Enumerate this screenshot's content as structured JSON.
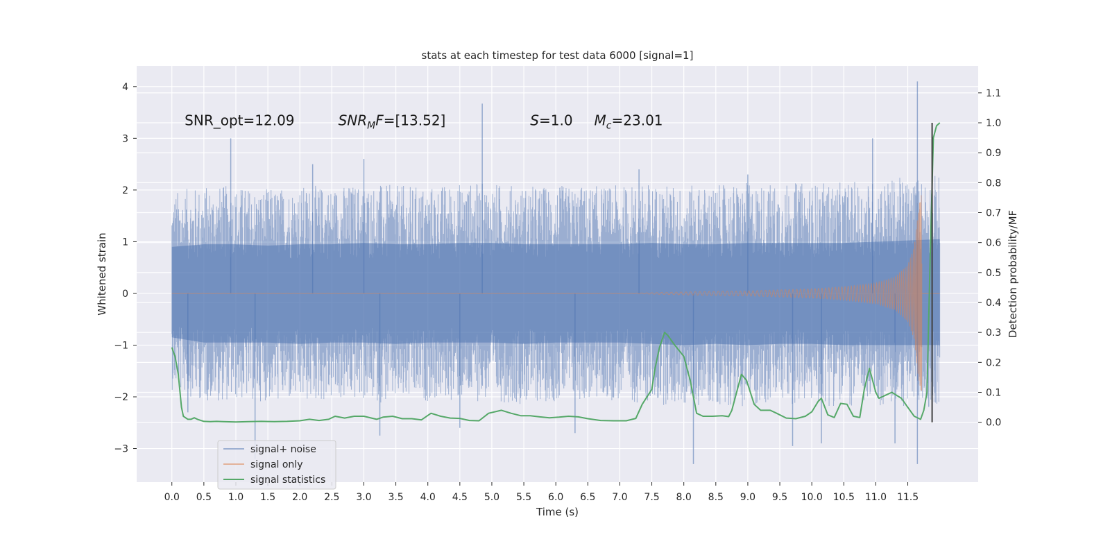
{
  "chart_data": {
    "type": "line",
    "title": "stats at each timestep for test data 6000 [signal=1]",
    "xlabel": "Time (s)",
    "ylabel": "Whitened strain",
    "y2label": "Detection probability/MF",
    "xlim": [
      -0.55,
      12.6
    ],
    "ylim": [
      -3.65,
      4.4
    ],
    "y2lim": [
      -0.2,
      1.19
    ],
    "xticks": [
      0.0,
      0.5,
      1.0,
      1.5,
      2.0,
      2.5,
      3.0,
      3.5,
      4.0,
      4.5,
      5.0,
      5.5,
      6.0,
      6.5,
      7.0,
      7.5,
      8.0,
      8.5,
      9.0,
      9.5,
      10.0,
      10.5,
      11.0,
      11.5
    ],
    "xtick_labels": [
      "0.0",
      "0.5",
      "1.0",
      "1.5",
      "2.0",
      "2.5",
      "3.0",
      "3.5",
      "4.0",
      "4.5",
      "5.0",
      "5.5",
      "6.0",
      "6.5",
      "7.0",
      "7.5",
      "8.0",
      "8.5",
      "9.0",
      "9.5",
      "10.0",
      "10.5",
      "11.0",
      "11.5"
    ],
    "yticks": [
      -3,
      -2,
      -1,
      0,
      1,
      2,
      3,
      4
    ],
    "ytick_labels": [
      "−3",
      "−2",
      "−1",
      "0",
      "1",
      "2",
      "3",
      "4"
    ],
    "y2ticks": [
      0.0,
      0.1,
      0.2,
      0.3,
      0.4,
      0.5,
      0.6,
      0.7,
      0.8,
      0.9,
      1.0,
      1.1
    ],
    "y2tick_labels": [
      "0.0",
      "0.1",
      "0.2",
      "0.3",
      "0.4",
      "0.5",
      "0.6",
      "0.7",
      "0.8",
      "0.9",
      "1.0",
      "1.1"
    ],
    "grid": true,
    "legend_placement": "lower-left",
    "annotations": [
      {
        "text": "SNR_opt=12.09",
        "x": 0.2,
        "y": 3.35,
        "italic_prefix": ""
      },
      {
        "text": "SNR",
        "sub": "M",
        "tail": "F=[13.52]",
        "x": 2.6,
        "y": 3.35
      },
      {
        "text": "S",
        "tail": "=1.0",
        "x": 5.6,
        "y": 3.35
      },
      {
        "text": "M",
        "sub": "c",
        "tail": "=23.01",
        "x": 6.6,
        "y": 3.35
      }
    ],
    "series": [
      {
        "name": "signal+ noise",
        "color": "#4c72b0",
        "opacity": 0.5,
        "axis": "left",
        "x_range": [
          0.0,
          12.0
        ],
        "envelope_upper": [
          1.8,
          1.9,
          1.9,
          1.85,
          1.9,
          1.9,
          1.95,
          1.9,
          1.9,
          1.95,
          1.95,
          1.9,
          1.9,
          1.9,
          1.9,
          1.95,
          1.9,
          1.9,
          1.95,
          1.95,
          1.95,
          1.95,
          2.0,
          2.05,
          2.1
        ],
        "envelope_lower": [
          -1.7,
          -1.9,
          -1.9,
          -1.9,
          -1.95,
          -1.9,
          -1.9,
          -1.95,
          -1.9,
          -1.9,
          -1.9,
          -1.95,
          -1.9,
          -1.9,
          -1.9,
          -1.95,
          -2.0,
          -1.95,
          -2.0,
          -1.95,
          -1.95,
          -2.0,
          -2.0,
          -2.0,
          -2.0
        ],
        "spikes": [
          {
            "x": 0.92,
            "y": 3.0
          },
          {
            "x": 4.85,
            "y": 3.67
          },
          {
            "x": 11.65,
            "y": 4.1
          },
          {
            "x": 2.2,
            "y": 2.5
          },
          {
            "x": 3.0,
            "y": 2.6
          },
          {
            "x": 7.3,
            "y": 2.4
          },
          {
            "x": 9.0,
            "y": 2.3
          },
          {
            "x": 10.95,
            "y": 3.0
          },
          {
            "x": 1.3,
            "y": -3.2
          },
          {
            "x": 8.15,
            "y": -3.3
          },
          {
            "x": 10.15,
            "y": -2.9
          },
          {
            "x": 11.65,
            "y": -3.3
          },
          {
            "x": 3.25,
            "y": -2.75
          },
          {
            "x": 6.3,
            "y": -2.7
          },
          {
            "x": 9.7,
            "y": -2.95
          },
          {
            "x": 11.3,
            "y": -2.9
          },
          {
            "x": 0.25,
            "y": -2.3
          },
          {
            "x": 4.5,
            "y": -2.6
          }
        ]
      },
      {
        "name": "signal only",
        "color": "#dd8452",
        "opacity": 0.55,
        "axis": "left",
        "envelope": [
          [
            7.0,
            0.0
          ],
          [
            8.0,
            0.03
          ],
          [
            9.0,
            0.05
          ],
          [
            10.0,
            0.09
          ],
          [
            10.5,
            0.13
          ],
          [
            11.0,
            0.2
          ],
          [
            11.3,
            0.32
          ],
          [
            11.5,
            0.55
          ],
          [
            11.6,
            0.9
          ],
          [
            11.65,
            1.5
          ],
          [
            11.7,
            1.9
          ]
        ],
        "end_x": 11.72
      },
      {
        "name": "signal statistics",
        "color": "#55a868",
        "axis": "right",
        "points": [
          [
            0.0,
            0.25
          ],
          [
            0.05,
            0.22
          ],
          [
            0.1,
            0.16
          ],
          [
            0.15,
            0.05
          ],
          [
            0.18,
            0.02
          ],
          [
            0.25,
            0.01
          ],
          [
            0.3,
            0.01
          ],
          [
            0.35,
            0.015
          ],
          [
            0.4,
            0.01
          ],
          [
            0.5,
            0.003
          ],
          [
            0.6,
            0.002
          ],
          [
            0.7,
            0.003
          ],
          [
            0.8,
            0.002
          ],
          [
            1.0,
            0.001
          ],
          [
            1.2,
            0.002
          ],
          [
            1.4,
            0.003
          ],
          [
            1.6,
            0.002
          ],
          [
            1.8,
            0.003
          ],
          [
            2.0,
            0.005
          ],
          [
            2.15,
            0.01
          ],
          [
            2.3,
            0.006
          ],
          [
            2.45,
            0.01
          ],
          [
            2.55,
            0.02
          ],
          [
            2.7,
            0.014
          ],
          [
            2.85,
            0.02
          ],
          [
            3.0,
            0.02
          ],
          [
            3.2,
            0.01
          ],
          [
            3.3,
            0.017
          ],
          [
            3.45,
            0.02
          ],
          [
            3.6,
            0.012
          ],
          [
            3.75,
            0.012
          ],
          [
            3.9,
            0.008
          ],
          [
            4.05,
            0.03
          ],
          [
            4.2,
            0.02
          ],
          [
            4.35,
            0.014
          ],
          [
            4.5,
            0.013
          ],
          [
            4.65,
            0.006
          ],
          [
            4.8,
            0.005
          ],
          [
            4.95,
            0.03
          ],
          [
            5.15,
            0.04
          ],
          [
            5.3,
            0.03
          ],
          [
            5.45,
            0.022
          ],
          [
            5.6,
            0.022
          ],
          [
            5.75,
            0.018
          ],
          [
            5.9,
            0.015
          ],
          [
            6.05,
            0.017
          ],
          [
            6.2,
            0.02
          ],
          [
            6.35,
            0.018
          ],
          [
            6.5,
            0.012
          ],
          [
            6.7,
            0.006
          ],
          [
            6.9,
            0.005
          ],
          [
            7.1,
            0.005
          ],
          [
            7.25,
            0.013
          ],
          [
            7.35,
            0.06
          ],
          [
            7.5,
            0.11
          ],
          [
            7.55,
            0.18
          ],
          [
            7.62,
            0.25
          ],
          [
            7.7,
            0.3
          ],
          [
            7.75,
            0.29
          ],
          [
            7.85,
            0.26
          ],
          [
            8.0,
            0.22
          ],
          [
            8.1,
            0.14
          ],
          [
            8.2,
            0.03
          ],
          [
            8.3,
            0.02
          ],
          [
            8.45,
            0.02
          ],
          [
            8.6,
            0.022
          ],
          [
            8.7,
            0.019
          ],
          [
            8.75,
            0.04
          ],
          [
            8.85,
            0.12
          ],
          [
            8.9,
            0.16
          ],
          [
            8.98,
            0.14
          ],
          [
            9.1,
            0.06
          ],
          [
            9.2,
            0.04
          ],
          [
            9.35,
            0.04
          ],
          [
            9.45,
            0.03
          ],
          [
            9.6,
            0.014
          ],
          [
            9.75,
            0.012
          ],
          [
            9.9,
            0.02
          ],
          [
            10.0,
            0.035
          ],
          [
            10.1,
            0.07
          ],
          [
            10.15,
            0.08
          ],
          [
            10.25,
            0.025
          ],
          [
            10.35,
            0.016
          ],
          [
            10.45,
            0.063
          ],
          [
            10.55,
            0.06
          ],
          [
            10.65,
            0.02
          ],
          [
            10.75,
            0.016
          ],
          [
            10.82,
            0.11
          ],
          [
            10.9,
            0.18
          ],
          [
            11.0,
            0.1
          ],
          [
            11.05,
            0.08
          ],
          [
            11.15,
            0.09
          ],
          [
            11.25,
            0.1
          ],
          [
            11.4,
            0.08
          ],
          [
            11.5,
            0.05
          ],
          [
            11.6,
            0.02
          ],
          [
            11.7,
            0.01
          ],
          [
            11.75,
            0.04
          ],
          [
            11.8,
            0.1
          ],
          [
            11.85,
            0.55
          ],
          [
            11.9,
            0.95
          ],
          [
            11.95,
            0.99
          ],
          [
            12.0,
            1.0
          ]
        ]
      }
    ],
    "vline": {
      "x": 11.88,
      "y2_from": 0.0,
      "y2_to": 1.0,
      "color": "#404040"
    }
  }
}
